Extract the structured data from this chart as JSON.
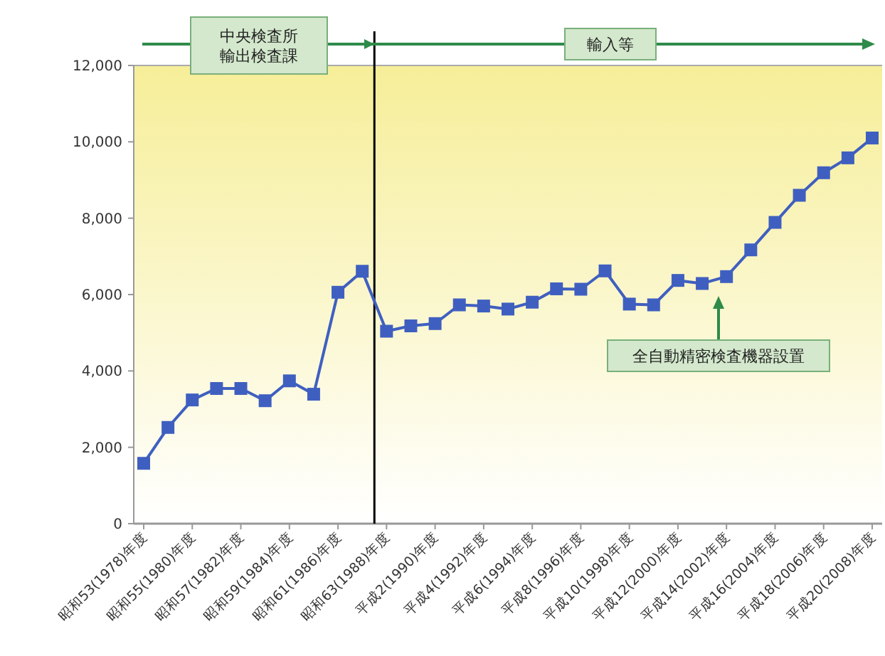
{
  "chart_data": {
    "type": "line",
    "categories": [
      "昭和53(1978)年度",
      null,
      "昭和55(1980)年度",
      null,
      "昭和57(1982)年度",
      null,
      "昭和59(1984)年度",
      null,
      "昭和61(1986)年度",
      null,
      "昭和63(1988)年度",
      null,
      "平成2(1990)年度",
      null,
      "平成4(1992)年度",
      null,
      "平成6(1994)年度",
      null,
      "平成8(1996)年度",
      null,
      "平成10(1998)年度",
      null,
      "平成12(2000)年度",
      null,
      "平成14(2002)年度",
      null,
      "平成16(2004)年度",
      null,
      "平成18(2006)年度",
      null,
      "平成20(2008)年度"
    ],
    "series": [
      {
        "color": "#3f5fc0",
        "values": [
          1580,
          2520,
          3240,
          3540,
          3540,
          3220,
          3740,
          3390,
          6060,
          6610,
          5040,
          5180,
          5240,
          5730,
          5700,
          5620,
          5800,
          6150,
          6140,
          6620,
          5750,
          5730,
          6370,
          6290,
          6470,
          7170,
          7890,
          8600,
          9190,
          9580,
          10100
        ]
      }
    ],
    "ylim": [
      0,
      12000
    ],
    "yticks": [
      {
        "value": 0,
        "label": "0"
      },
      {
        "value": 2000,
        "label": "2,000"
      },
      {
        "value": 4000,
        "label": "4,000"
      },
      {
        "value": 6000,
        "label": "6,000"
      },
      {
        "value": 8000,
        "label": "8,000"
      },
      {
        "value": 10000,
        "label": "10,000"
      },
      {
        "value": 12000,
        "label": "12,000"
      }
    ],
    "marker": "square",
    "annotations": [
      "中央検査所",
      "輸出検査課",
      "輸入等",
      "全自動精密検査機器設置"
    ]
  }
}
